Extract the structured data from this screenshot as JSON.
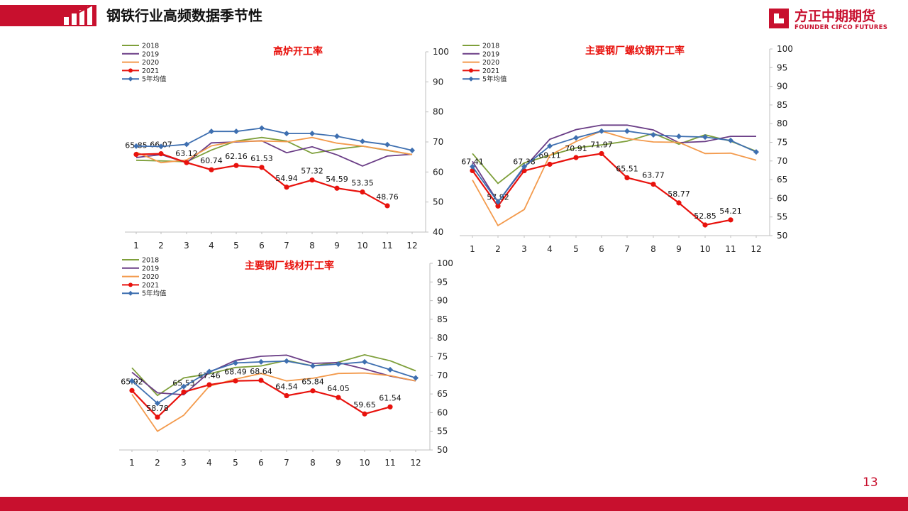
{
  "header": {
    "title": "钢铁行业高频数据季节性"
  },
  "logo": {
    "name_cn": "方正中期期货",
    "name_en": "FOUNDER CIFCO FUTURES"
  },
  "page_number": "13",
  "colors": {
    "brand": "#c8102e",
    "s2018": "#7e9f3a",
    "s2019": "#6a3d86",
    "s2020": "#f39a4c",
    "s2021": "#e8120d",
    "avg": "#3e6fb0"
  },
  "chart_data": [
    {
      "type": "line",
      "title": "高炉开工率",
      "x": [
        1,
        2,
        3,
        4,
        5,
        6,
        7,
        8,
        9,
        10,
        11,
        12
      ],
      "ylim": [
        40,
        100
      ],
      "yticks": [
        40,
        50,
        60,
        70,
        80,
        90,
        100
      ],
      "legend_position": "top-left",
      "series": [
        {
          "name": "2018",
          "values": [
            63.9,
            63.7,
            63.4,
            67.3,
            70.3,
            71.5,
            70.3,
            66.2,
            67.6,
            68.6,
            67.2,
            65.8
          ]
        },
        {
          "name": "2019",
          "values": [
            64.8,
            65.8,
            63.1,
            69.7,
            70.0,
            70.4,
            66.4,
            68.4,
            65.7,
            62.0,
            65.3,
            65.9
          ]
        },
        {
          "name": "2020",
          "values": [
            66.6,
            63.1,
            64.0,
            68.7,
            70.2,
            70.3,
            70.1,
            71.5,
            69.6,
            68.6,
            67.3,
            65.8
          ]
        },
        {
          "name": "2021",
          "values": [
            65.85,
            66.07,
            63.12,
            60.74,
            62.16,
            61.53,
            54.94,
            57.32,
            54.59,
            53.35,
            48.76,
            null
          ],
          "labels": [
            "65.85",
            "66.07",
            "63.12",
            "60.74",
            "62.16",
            "61.53",
            "54.94",
            "57.32",
            "54.59",
            "53.35",
            "48.76",
            ""
          ]
        },
        {
          "name": "5年均值",
          "values": [
            68.6,
            68.5,
            69.2,
            73.5,
            73.5,
            74.6,
            72.8,
            72.8,
            71.9,
            70.2,
            69.1,
            67.2
          ]
        }
      ]
    },
    {
      "type": "line",
      "title": "主要钢厂螺纹钢开工率",
      "x": [
        1,
        2,
        3,
        4,
        5,
        6,
        7,
        8,
        9,
        10,
        11,
        12
      ],
      "ylim": [
        50,
        100
      ],
      "yticks": [
        50,
        55,
        60,
        65,
        70,
        75,
        80,
        85,
        90,
        95,
        100
      ],
      "legend_position": "top-left",
      "series": [
        {
          "name": "2018",
          "values": [
            72.0,
            64.0,
            69.5,
            71.5,
            73.5,
            74.3,
            75.3,
            77.4,
            74.5,
            77.0,
            75.3,
            72.6
          ]
        },
        {
          "name": "2019",
          "values": [
            69.9,
            59.0,
            68.2,
            75.8,
            78.4,
            79.6,
            79.6,
            78.3,
            74.9,
            75.2,
            76.6,
            76.6
          ]
        },
        {
          "name": "2020",
          "values": [
            64.9,
            52.7,
            57.0,
            71.5,
            75.2,
            78.0,
            76.0,
            75.1,
            75.0,
            72.0,
            72.1,
            70.2
          ]
        },
        {
          "name": "2021",
          "values": [
            67.41,
            57.92,
            67.38,
            69.11,
            70.91,
            71.97,
            65.51,
            63.77,
            58.77,
            52.85,
            54.21,
            null
          ],
          "labels": [
            "67.41",
            "57.92",
            "67.38",
            "69.11",
            "70.91",
            "71.97",
            "65.51",
            "63.77",
            "58.77",
            "52.85",
            "54.21",
            ""
          ]
        },
        {
          "name": "5年均值",
          "values": [
            68.5,
            59.0,
            68.5,
            74.0,
            76.2,
            78.0,
            78.0,
            77.0,
            76.6,
            76.4,
            75.5,
            72.4
          ]
        }
      ]
    },
    {
      "type": "line",
      "title": "主要钢厂线材开工率",
      "x": [
        1,
        2,
        3,
        4,
        5,
        6,
        7,
        8,
        9,
        10,
        11,
        12
      ],
      "ylim": [
        50,
        100
      ],
      "yticks": [
        50,
        55,
        60,
        65,
        70,
        75,
        80,
        85,
        90,
        95,
        100
      ],
      "legend_position": "top-left",
      "series": [
        {
          "name": "2018",
          "values": [
            72.0,
            64.6,
            69.3,
            70.4,
            72.1,
            72.5,
            74.0,
            72.5,
            73.5,
            75.5,
            73.9,
            71.2
          ]
        },
        {
          "name": "2019",
          "values": [
            70.8,
            65.3,
            64.8,
            70.8,
            74.0,
            75.1,
            75.4,
            73.2,
            73.4,
            71.7,
            69.8,
            68.5
          ]
        },
        {
          "name": "2020",
          "values": [
            64.9,
            55.0,
            59.3,
            67.1,
            69.0,
            70.5,
            68.5,
            69.2,
            70.5,
            70.6,
            69.9,
            68.5
          ]
        },
        {
          "name": "2021",
          "values": [
            65.92,
            58.78,
            65.53,
            67.46,
            68.49,
            68.64,
            64.54,
            65.84,
            64.05,
            59.65,
            61.54,
            null
          ],
          "labels": [
            "65.92",
            "58.78",
            "65.53",
            "67.46",
            "68.49",
            "68.64",
            "64.54",
            "65.84",
            "64.05",
            "59.65",
            "61.54",
            ""
          ]
        },
        {
          "name": "5年均值",
          "values": [
            68.5,
            62.5,
            67.0,
            71.0,
            73.3,
            73.6,
            73.8,
            72.5,
            73.0,
            73.6,
            71.5,
            69.3
          ]
        }
      ]
    }
  ]
}
